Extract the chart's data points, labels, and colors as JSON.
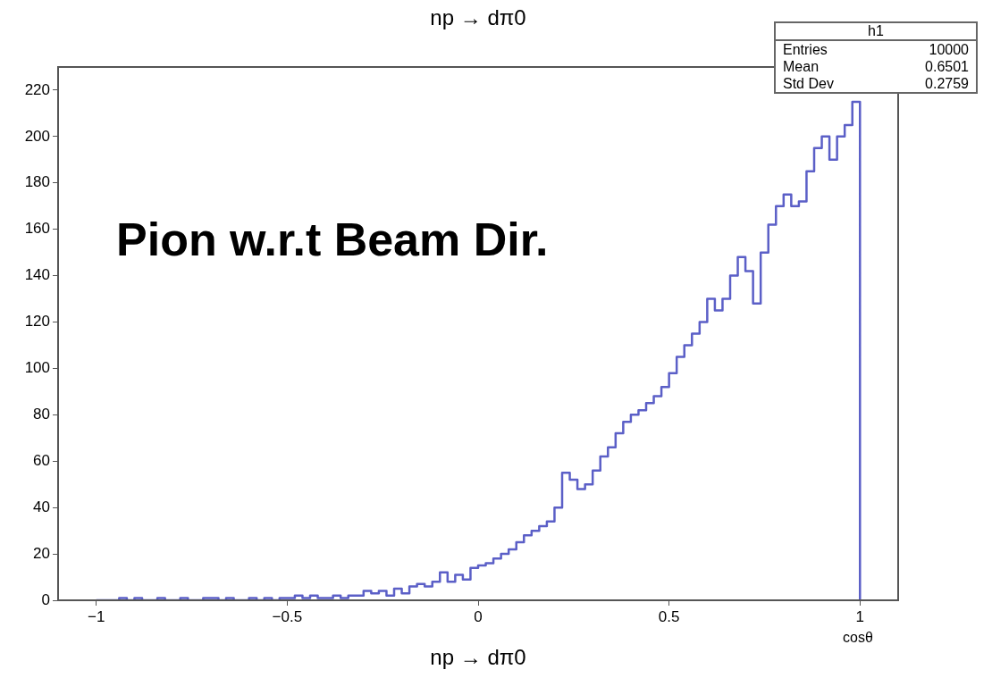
{
  "chart_data": {
    "type": "histogram",
    "title": "np → dπ0",
    "xlabel": "cosθ",
    "annotations": [
      "Pion w.r.t Beam Dir.",
      "np → dπ0",
      "h1",
      "Entries",
      "10000",
      "Mean",
      "0.6501",
      "Std Dev",
      "0.2759"
    ],
    "bins": [
      -1,
      -0.98,
      -0.96,
      -0.94,
      -0.92,
      -0.9,
      -0.88,
      -0.86,
      -0.84,
      -0.82,
      -0.8,
      -0.78,
      -0.76,
      -0.74,
      -0.72,
      -0.7,
      -0.68,
      -0.66,
      -0.64,
      -0.62,
      -0.6,
      -0.58,
      -0.56,
      -0.54,
      -0.52,
      -0.5,
      -0.48,
      -0.46,
      -0.44,
      -0.42,
      -0.4,
      -0.38,
      -0.36,
      -0.34,
      -0.32,
      -0.3,
      -0.28,
      -0.26,
      -0.24,
      -0.22,
      -0.2,
      -0.18,
      -0.16,
      -0.14,
      -0.12,
      -0.1,
      -0.08,
      -0.06,
      -0.04,
      -0.02,
      0,
      0.02,
      0.04,
      0.06,
      0.08,
      0.1,
      0.12,
      0.14,
      0.16,
      0.18,
      0.2,
      0.22,
      0.24,
      0.26,
      0.28,
      0.3,
      0.32,
      0.34,
      0.36,
      0.38,
      0.4,
      0.42,
      0.44,
      0.46,
      0.48,
      0.5,
      0.52,
      0.54,
      0.56,
      0.58,
      0.6,
      0.62,
      0.64,
      0.66,
      0.68,
      0.7,
      0.72,
      0.74,
      0.76,
      0.78,
      0.8,
      0.82,
      0.84,
      0.86,
      0.88,
      0.9,
      0.92,
      0.94,
      0.96,
      0.98,
      1
    ],
    "values": [
      0,
      0,
      0,
      1,
      0,
      1,
      0,
      0,
      1,
      0,
      0,
      1,
      0,
      0,
      1,
      1,
      0,
      1,
      0,
      0,
      1,
      0,
      1,
      0,
      1,
      1,
      2,
      1,
      2,
      1,
      1,
      2,
      1,
      2,
      2,
      4,
      3,
      4,
      2,
      5,
      3,
      6,
      7,
      6,
      8,
      12,
      8,
      11,
      9,
      14,
      15,
      16,
      18,
      20,
      22,
      25,
      28,
      30,
      32,
      34,
      40,
      55,
      52,
      48,
      50,
      56,
      62,
      66,
      72,
      77,
      80,
      82,
      85,
      88,
      92,
      98,
      105,
      110,
      115,
      120,
      130,
      125,
      130,
      140,
      148,
      142,
      128,
      150,
      162,
      170,
      175,
      170,
      172,
      185,
      195,
      200,
      190,
      200,
      205,
      215
    ],
    "color": "#5b5fc7",
    "xlim": [
      -1.1,
      1.1
    ],
    "ylim": [
      0,
      230
    ],
    "xticks": [
      {
        "value": -1,
        "label": "−1"
      },
      {
        "value": -0.5,
        "label": "−0.5"
      },
      0,
      0.5,
      1
    ],
    "yticks": [
      0,
      20,
      40,
      60,
      80,
      100,
      120,
      140,
      160,
      180,
      200,
      220
    ],
    "grid": false,
    "legend": false
  }
}
